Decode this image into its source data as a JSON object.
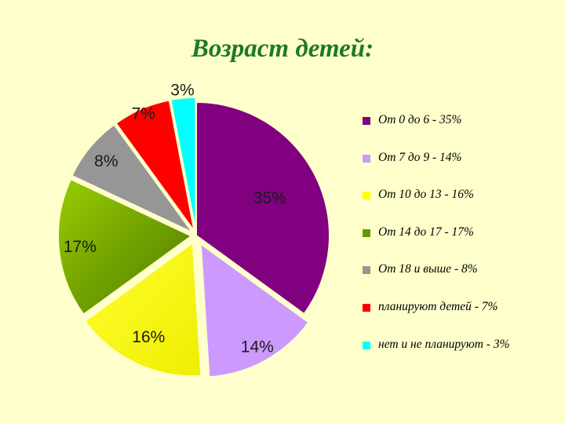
{
  "chart_data": {
    "type": "pie",
    "title": "Возраст детей:",
    "slices": [
      {
        "legend": "От 0 до 6 - 35%",
        "value": 35,
        "label": "35%",
        "color": "#800080"
      },
      {
        "legend": "От 7 до 9 - 14%",
        "value": 14,
        "label": "14%",
        "color": "#CC99FF"
      },
      {
        "legend": "От 10 до 13 - 16%",
        "value": 16,
        "label": "16%",
        "color": "#FFFF00"
      },
      {
        "legend": "От 14 до 17 - 17%",
        "value": 17,
        "label": "17%",
        "color": "#669900"
      },
      {
        "legend": "От 18 и выше - 8%",
        "value": 8,
        "label": "8%",
        "color": "#969696"
      },
      {
        "legend": "планируют детей - 7%",
        "value": 7,
        "label": "7%",
        "color": "#FF0000"
      },
      {
        "legend": "нет и не планируют - 3%",
        "value": 3,
        "label": "3%",
        "color": "#00FFFF"
      }
    ],
    "legend_position": "right"
  }
}
